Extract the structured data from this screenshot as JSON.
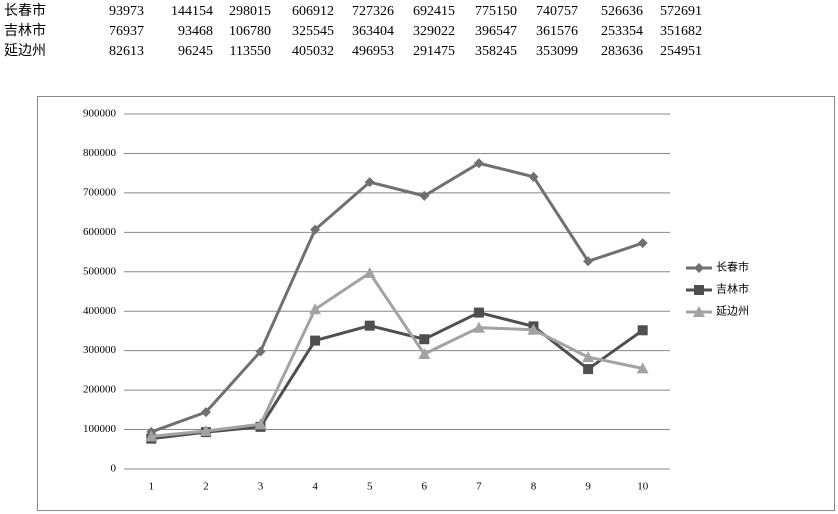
{
  "chart_data": {
    "type": "line",
    "categories": [
      "1",
      "2",
      "3",
      "4",
      "5",
      "6",
      "7",
      "8",
      "9",
      "10"
    ],
    "series": [
      {
        "name": "长春市",
        "color": "#707070",
        "marker": "diamond",
        "values": [
          93973,
          144154,
          298015,
          606912,
          727326,
          692415,
          775150,
          740757,
          526636,
          572691
        ]
      },
      {
        "name": "吉林市",
        "color": "#4f4f4f",
        "marker": "square",
        "values": [
          76937,
          93468,
          106780,
          325545,
          363404,
          329022,
          396547,
          361576,
          253354,
          351682
        ]
      },
      {
        "name": "延边州",
        "color": "#a3a3a3",
        "marker": "triangle",
        "values": [
          82613,
          96245,
          113550,
          405032,
          496953,
          291475,
          358245,
          353099,
          283636,
          254951
        ]
      }
    ],
    "ylim": [
      0,
      900000
    ],
    "yticks": [
      0,
      100000,
      200000,
      300000,
      400000,
      500000,
      600000,
      700000,
      800000,
      900000
    ],
    "grid": true,
    "legend": "right"
  }
}
